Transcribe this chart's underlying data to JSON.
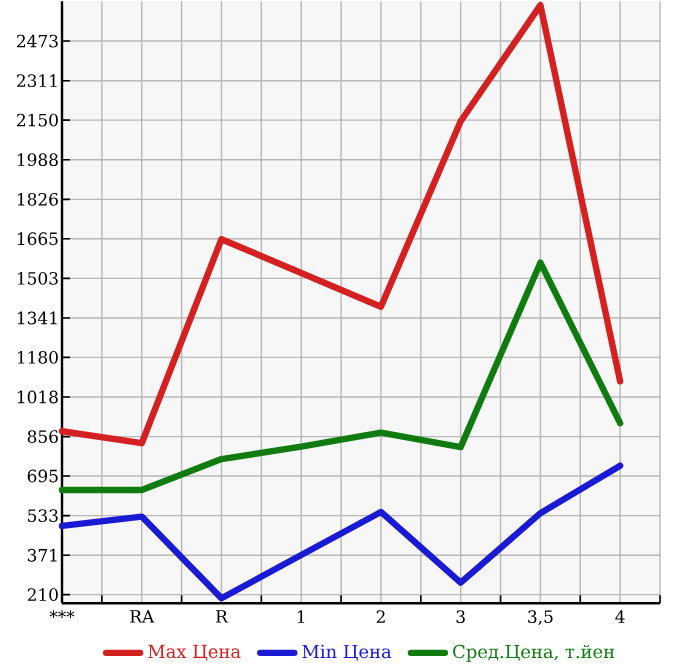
{
  "chart_data": {
    "type": "line",
    "categories": [
      "***",
      "RA",
      "R",
      "1",
      "2",
      "3",
      "3,5",
      "4"
    ],
    "series": [
      {
        "name": "Max Цена",
        "color": "#d42020",
        "values": [
          878,
          829,
          1663,
          1525,
          1387,
          2145,
          2620,
          1082
        ]
      },
      {
        "name": "Min Цена",
        "color": "#1a1ad4",
        "values": [
          491,
          529,
          195,
          372,
          548,
          259,
          543,
          737
        ]
      },
      {
        "name": "Сред.Цена, т.йен",
        "color": "#107c10",
        "values": [
          638,
          638,
          764,
          815,
          872,
          813,
          1567,
          911
        ]
      }
    ],
    "ylim": [
      175,
      2636
    ],
    "yticks": [
      210,
      371,
      533,
      695,
      856,
      1018,
      1180,
      1341,
      1503,
      1665,
      1826,
      1988,
      2150,
      2311,
      2473
    ],
    "grid": true,
    "legend": "bottom"
  }
}
